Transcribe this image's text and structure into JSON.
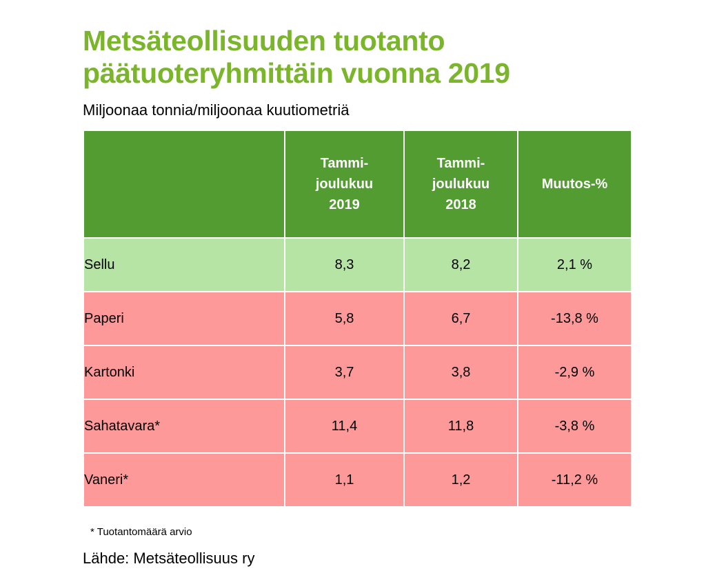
{
  "title_lines": [
    "Metsäteollisuuden tuotanto",
    "päätuoteryhmittäin vuonna 2019"
  ],
  "subtitle": "Miljoonaa tonnia/miljoonaa kuutiometriä",
  "colors": {
    "title": "#7ab52b",
    "header_bg": "#529c31",
    "positive_row": "#b5e4a4",
    "negative_row": "#fe9999"
  },
  "chart_data": {
    "type": "table",
    "columns": [
      {
        "label": "",
        "lines": []
      },
      {
        "label": "Tammi-joulukuu 2019",
        "lines": [
          "Tammi-",
          "joulukuu",
          "2019"
        ]
      },
      {
        "label": "Tammi-joulukuu 2018",
        "lines": [
          "Tammi-",
          "joulukuu",
          "2018"
        ]
      },
      {
        "label": "Muutos-%",
        "lines": [
          "Muutos-%"
        ]
      }
    ],
    "rows": [
      {
        "name": "Sellu",
        "y2019": "8,3",
        "y2018": "8,2",
        "change": "2,1 %",
        "trend": "positive"
      },
      {
        "name": "Paperi",
        "y2019": "5,8",
        "y2018": "6,7",
        "change": "-13,8 %",
        "trend": "negative"
      },
      {
        "name": "Kartonki",
        "y2019": "3,7",
        "y2018": "3,8",
        "change": "-2,9 %",
        "trend": "negative"
      },
      {
        "name": "Sahatavara*",
        "y2019": "11,4",
        "y2018": "11,8",
        "change": "-3,8 %",
        "trend": "negative"
      },
      {
        "name": "Vaneri*",
        "y2019": "1,1",
        "y2018": "1,2",
        "change": "-11,2 %",
        "trend": "negative"
      }
    ]
  },
  "footnote": "* Tuotantomäärä arvio",
  "source": "Lähde: Metsäteollisuus ry"
}
